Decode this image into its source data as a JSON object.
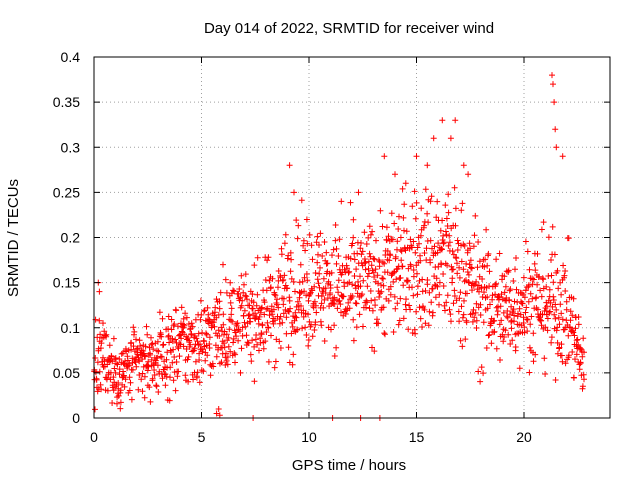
{
  "chart_data": {
    "type": "scatter",
    "title": "Day 014 of 2022, SRMTID for receiver wind",
    "xlabel": "GPS time / hours",
    "ylabel": "SRMTID / TECUs",
    "xlim": [
      0,
      24
    ],
    "ylim": [
      0,
      0.4
    ],
    "x_ticks": [
      0,
      5,
      10,
      15,
      20
    ],
    "x_tick_labels": [
      "0",
      "5",
      "10",
      "15",
      "20"
    ],
    "y_ticks": [
      0,
      0.05,
      0.1,
      0.15,
      0.2,
      0.25,
      0.3,
      0.35,
      0.4
    ],
    "y_tick_labels": [
      "0",
      "0.05",
      "0.1",
      "0.15",
      "0.2",
      "0.25",
      "0.3",
      "0.35",
      "0.4"
    ],
    "grid": true,
    "marker": "+",
    "series_color": "#ff0000",
    "frame_color": "#000000",
    "grid_color": "#a0a0a0",
    "data_span_hours": [
      0,
      22.8
    ],
    "trend": [
      {
        "t": 0.0,
        "median": 0.05,
        "spread": 0.025
      },
      {
        "t": 0.5,
        "median": 0.07,
        "spread": 0.03
      },
      {
        "t": 1.0,
        "median": 0.045,
        "spread": 0.02
      },
      {
        "t": 2.0,
        "median": 0.06,
        "spread": 0.025
      },
      {
        "t": 3.0,
        "median": 0.065,
        "spread": 0.025
      },
      {
        "t": 4.0,
        "median": 0.08,
        "spread": 0.03
      },
      {
        "t": 5.0,
        "median": 0.085,
        "spread": 0.03
      },
      {
        "t": 6.0,
        "median": 0.1,
        "spread": 0.03
      },
      {
        "t": 7.0,
        "median": 0.11,
        "spread": 0.03
      },
      {
        "t": 8.0,
        "median": 0.115,
        "spread": 0.035
      },
      {
        "t": 9.0,
        "median": 0.14,
        "spread": 0.045
      },
      {
        "t": 10.0,
        "median": 0.145,
        "spread": 0.04
      },
      {
        "t": 11.0,
        "median": 0.15,
        "spread": 0.04
      },
      {
        "t": 12.0,
        "median": 0.14,
        "spread": 0.04
      },
      {
        "t": 13.0,
        "median": 0.155,
        "spread": 0.04
      },
      {
        "t": 14.0,
        "median": 0.165,
        "spread": 0.045
      },
      {
        "t": 15.0,
        "median": 0.17,
        "spread": 0.05
      },
      {
        "t": 16.0,
        "median": 0.175,
        "spread": 0.055
      },
      {
        "t": 17.0,
        "median": 0.165,
        "spread": 0.05
      },
      {
        "t": 18.0,
        "median": 0.13,
        "spread": 0.045
      },
      {
        "t": 19.0,
        "median": 0.12,
        "spread": 0.04
      },
      {
        "t": 20.0,
        "median": 0.13,
        "spread": 0.04
      },
      {
        "t": 21.0,
        "median": 0.13,
        "spread": 0.045
      },
      {
        "t": 22.0,
        "median": 0.12,
        "spread": 0.04
      },
      {
        "t": 22.8,
        "median": 0.05,
        "spread": 0.02
      }
    ],
    "spikes": [
      {
        "x": 9.1,
        "y": 0.28
      },
      {
        "x": 9.3,
        "y": 0.25
      },
      {
        "x": 9.9,
        "y": 0.22
      },
      {
        "x": 11.5,
        "y": 0.24
      },
      {
        "x": 12.3,
        "y": 0.25
      },
      {
        "x": 13.5,
        "y": 0.29
      },
      {
        "x": 14.0,
        "y": 0.27
      },
      {
        "x": 14.5,
        "y": 0.26
      },
      {
        "x": 15.0,
        "y": 0.29
      },
      {
        "x": 15.5,
        "y": 0.28
      },
      {
        "x": 15.8,
        "y": 0.31
      },
      {
        "x": 16.2,
        "y": 0.33
      },
      {
        "x": 16.6,
        "y": 0.31
      },
      {
        "x": 16.8,
        "y": 0.33
      },
      {
        "x": 17.2,
        "y": 0.28
      },
      {
        "x": 17.4,
        "y": 0.27
      },
      {
        "x": 21.3,
        "y": 0.38
      },
      {
        "x": 21.35,
        "y": 0.37
      },
      {
        "x": 21.4,
        "y": 0.35
      },
      {
        "x": 21.45,
        "y": 0.32
      },
      {
        "x": 21.5,
        "y": 0.3
      },
      {
        "x": 21.8,
        "y": 0.29
      },
      {
        "x": 6.0,
        "y": 0.17
      },
      {
        "x": 0.2,
        "y": 0.15
      },
      {
        "x": 0.25,
        "y": 0.14
      }
    ],
    "zero_markers": [
      {
        "x": 5.7,
        "y": 0.005
      },
      {
        "x": 5.8,
        "y": 0.01
      },
      {
        "x": 5.85,
        "y": 0.003
      },
      {
        "x": 7.4,
        "y": 0
      },
      {
        "x": 11.1,
        "y": 0
      },
      {
        "x": 12.4,
        "y": 0
      },
      {
        "x": 13.3,
        "y": 0
      }
    ]
  }
}
